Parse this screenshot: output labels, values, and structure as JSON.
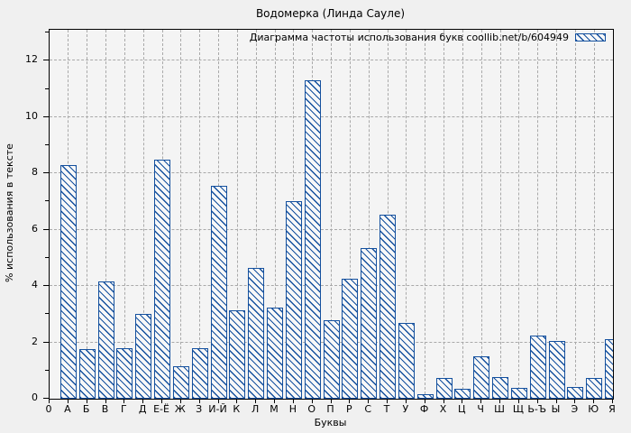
{
  "title": "Водомерка (Линда Сауле)",
  "legend": {
    "label": "Диаграмма частоты использования букв coollib.net/b/604949",
    "swatch": "hatched-blue-box"
  },
  "axes": {
    "ylabel": "% использования в тексте",
    "xlabel": "Буквы",
    "origin_label": "0"
  },
  "colors": {
    "bar_blue": "#14509e",
    "grid_gray": "#a9a9a9",
    "figure_bg": "#f0f0f0",
    "plot_bg": "#f4f4f4",
    "frame": "#000000"
  },
  "chart_data": {
    "type": "bar",
    "title": "Водомерка (Линда Сауле)",
    "legend_label": "Диаграмма частоты использования букв coollib.net/b/604949",
    "legend_position": "top-right-inside",
    "xlabel": "Буквы",
    "ylabel": "% использования в тексте",
    "ylim": [
      0,
      13.1
    ],
    "yticks": [
      0,
      2,
      4,
      6,
      8,
      10,
      12
    ],
    "minor_yticks": [
      1,
      3,
      5,
      7,
      9,
      11,
      13
    ],
    "grid": true,
    "grid_style": "dashed",
    "bar_style": "diagonal-hatch",
    "x_origin_tick_label": "0",
    "categories": [
      "А",
      "Б",
      "В",
      "Г",
      "Д",
      "Е-Ё",
      "Ж",
      "З",
      "И-Й",
      "К",
      "Л",
      "М",
      "Н",
      "О",
      "П",
      "Р",
      "С",
      "Т",
      "У",
      "Ф",
      "Х",
      "Ц",
      "Ч",
      "Ш",
      "Щ",
      "Ь-Ъ",
      "Ы",
      "Э",
      "Ю",
      "Я"
    ],
    "values": [
      8.3,
      1.75,
      4.15,
      1.8,
      3.0,
      8.5,
      1.15,
      1.8,
      7.55,
      3.15,
      4.65,
      3.25,
      7.0,
      11.3,
      2.8,
      4.25,
      5.35,
      6.55,
      2.7,
      0.15,
      0.75,
      0.35,
      1.5,
      0.78,
      0.4,
      2.25,
      2.05,
      0.43,
      0.75,
      2.1
    ]
  }
}
